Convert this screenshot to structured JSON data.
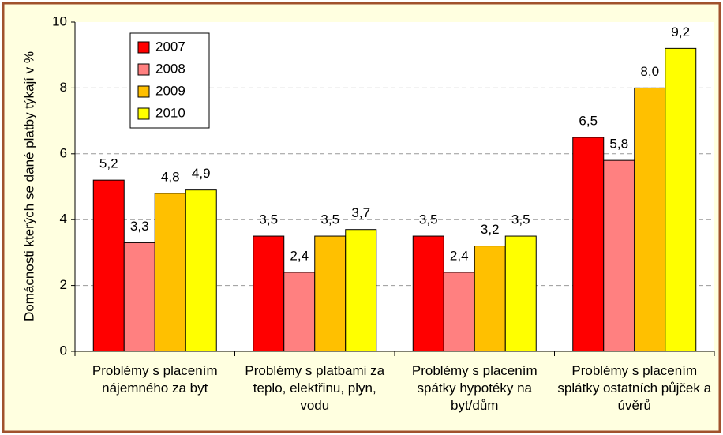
{
  "chart_data": {
    "type": "bar",
    "y_label": "Domácnosti kterých se dané platby týkají v %",
    "categories": [
      "Problémy s placením nájemného za byt",
      "Problémy s platbami za teplo, elektřinu, plyn, vodu",
      "Problémy s placením spátky hypotéky na byt/dům",
      "Problémy s placením splátky ostatních půjček a úvěrů"
    ],
    "series": [
      {
        "name": "2007",
        "color": "#ff0000",
        "values": [
          5.2,
          3.5,
          3.5,
          6.5
        ],
        "value_labels": [
          "5,2",
          "3,5",
          "3,5",
          "6,5"
        ]
      },
      {
        "name": "2008",
        "color": "#ff8080",
        "values": [
          3.3,
          2.4,
          2.4,
          5.8
        ],
        "value_labels": [
          "3,3",
          "2,4",
          "2,4",
          "5,8"
        ]
      },
      {
        "name": "2009",
        "color": "#ffc000",
        "values": [
          4.8,
          3.5,
          3.2,
          8.0
        ],
        "value_labels": [
          "4,8",
          "3,5",
          "3,2",
          "8,0"
        ]
      },
      {
        "name": "2010",
        "color": "#ffff00",
        "values": [
          4.9,
          3.7,
          3.5,
          9.2
        ],
        "value_labels": [
          "4,9",
          "3,7",
          "3,5",
          "9,2"
        ]
      }
    ],
    "ylim": [
      0,
      10
    ],
    "yticks": [
      0,
      2,
      4,
      6,
      8,
      10
    ],
    "grid": true,
    "legend": "upper left"
  }
}
